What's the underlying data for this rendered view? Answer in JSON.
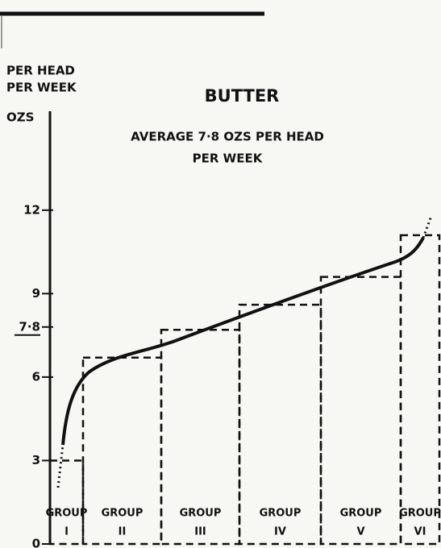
{
  "chart_data": {
    "type": "bar",
    "title": "BUTTER",
    "y_label": [
      "PER HEAD",
      "PER WEEK"
    ],
    "y_unit": "OZS",
    "annotation": [
      "AVERAGE 7·8 OZS PER HEAD",
      "PER WEEK"
    ],
    "categories": [
      [
        "GROUP",
        "I"
      ],
      [
        "GROUP",
        "II"
      ],
      [
        "GROUP",
        "III"
      ],
      [
        "GROUP",
        "IV"
      ],
      [
        "GROUP",
        "V"
      ],
      [
        "GROUP",
        "VI"
      ]
    ],
    "values": [
      3.0,
      6.7,
      7.7,
      8.6,
      9.6,
      11.1
    ],
    "color": "#111111",
    "ylim": [
      0,
      15.5
    ],
    "yticks": [
      0,
      3,
      6,
      {
        "value": 7.8,
        "label": "7·8"
      },
      9,
      12
    ]
  }
}
